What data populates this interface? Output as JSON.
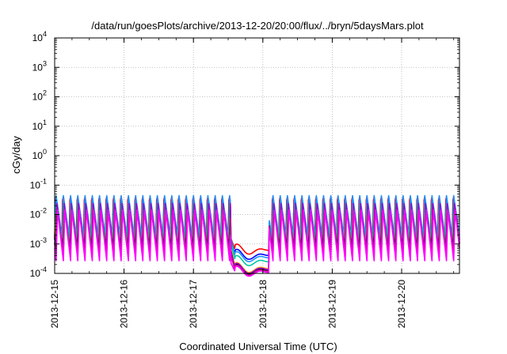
{
  "chart_data": {
    "type": "line",
    "title": "/data/run/goesPlots/archive/2013-12-20/20:00/flux/../bryn/5daysMars.plot",
    "xlabel": "Coordinated Universal Time (UTC)",
    "ylabel": "cGy/day",
    "yscale": "log",
    "ylim": [
      0.0001,
      10000
    ],
    "xlim": [
      "2013-12-15T00:00",
      "2013-12-20T20:00"
    ],
    "x_ticks": [
      "2013-12-15",
      "2013-12-16",
      "2013-12-17",
      "2013-12-18",
      "2013-12-19",
      "2013-12-20"
    ],
    "y_ticks": [
      {
        "value": 0.0001,
        "base": "10",
        "exp": "-4"
      },
      {
        "value": 0.001,
        "base": "10",
        "exp": "-3"
      },
      {
        "value": 0.01,
        "base": "10",
        "exp": "-2"
      },
      {
        "value": 0.1,
        "base": "10",
        "exp": "-1"
      },
      {
        "value": 1,
        "base": "10",
        "exp": "0"
      },
      {
        "value": 10,
        "base": "10",
        "exp": "1"
      },
      {
        "value": 100,
        "base": "10",
        "exp": "2"
      },
      {
        "value": 1000,
        "base": "10",
        "exp": "3"
      },
      {
        "value": 10000,
        "base": "10",
        "exp": "4"
      }
    ],
    "grid": true,
    "legend": "none",
    "pattern": {
      "period_hours": 2.5,
      "peak_mean": 0.045,
      "trough_mean": 0.0012,
      "gap_start": "2013-12-17T13:00",
      "gap_end": "2013-12-18T02:00",
      "gap_level_mean": 0.00045
    },
    "series": [
      {
        "color": "#ff0000",
        "factor": 1.25,
        "amp": 1.0,
        "gap_factor": 1.35,
        "phase": 0.0
      },
      {
        "color": "#0000ff",
        "factor": 1.0,
        "amp": 1.0,
        "gap_factor": 0.9,
        "phase": 0.03
      },
      {
        "color": "#1e90ff",
        "factor": 1.05,
        "amp": 0.95,
        "gap_factor": 0.75,
        "phase": 0.06
      },
      {
        "color": "#00c8a0",
        "factor": 0.62,
        "amp": 0.9,
        "gap_factor": 0.55,
        "phase": 0.09
      },
      {
        "color": "#ffa500",
        "factor": 0.55,
        "amp": 1.0,
        "gap_factor": 0.32,
        "phase": 0.12
      },
      {
        "color": "#000000",
        "factor": 0.48,
        "amp": 1.0,
        "gap_factor": 0.28,
        "phase": 0.15
      },
      {
        "color": "#9400d3",
        "factor": 0.52,
        "amp": 1.05,
        "gap_factor": 0.3,
        "phase": 0.18
      },
      {
        "color": "#c71585",
        "factor": 0.45,
        "amp": 1.1,
        "gap_factor": 0.26,
        "phase": 0.21
      },
      {
        "color": "#ff00ff",
        "factor": 0.38,
        "amp": 1.2,
        "gap_factor": 0.24,
        "phase": 0.24
      }
    ]
  }
}
